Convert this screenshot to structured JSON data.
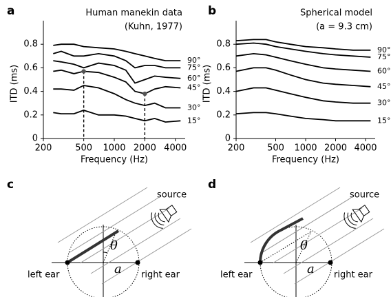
{
  "chart_data": [
    {
      "type": "line",
      "label": "a",
      "title": "Human manekin data",
      "subtitle": "(Kuhn, 1977)",
      "x_label": "Frequency (Hz)",
      "y_label": "ITD (ms)",
      "log_x": true,
      "x": [
        250,
        300,
        400,
        500,
        700,
        1000,
        1300,
        1600,
        2000,
        2500,
        3200,
        4500
      ],
      "xlim": [
        200,
        5000
      ],
      "xticks": [
        200,
        500,
        1000,
        2000,
        4000
      ],
      "ylim": [
        0,
        1
      ],
      "yticks": [
        0,
        0.2,
        0.4,
        0.6,
        0.8
      ],
      "series": [
        {
          "name": "90°",
          "color": "#000000",
          "values": [
            0.79,
            0.8,
            0.8,
            0.78,
            0.77,
            0.76,
            0.74,
            0.72,
            0.7,
            0.68,
            0.66,
            0.66
          ]
        },
        {
          "name": "75°",
          "color": "#000000",
          "values": [
            0.72,
            0.74,
            0.7,
            0.7,
            0.72,
            0.7,
            0.66,
            0.6,
            0.62,
            0.62,
            0.6,
            0.6
          ]
        },
        {
          "name": "60°",
          "color": "#000000",
          "values": [
            0.66,
            0.65,
            0.63,
            0.6,
            0.64,
            0.62,
            0.58,
            0.47,
            0.5,
            0.53,
            0.52,
            0.51
          ]
        },
        {
          "name": "45°",
          "color": "#000000",
          "values": [
            0.57,
            0.58,
            0.55,
            0.57,
            0.56,
            0.52,
            0.48,
            0.4,
            0.38,
            0.42,
            0.44,
            0.43
          ]
        },
        {
          "name": "30°",
          "color": "#000000",
          "values": [
            0.42,
            0.42,
            0.41,
            0.45,
            0.43,
            0.38,
            0.33,
            0.3,
            0.28,
            0.3,
            0.26,
            0.26
          ]
        },
        {
          "name": "15°",
          "color": "#000000",
          "values": [
            0.22,
            0.21,
            0.21,
            0.24,
            0.2,
            0.2,
            0.19,
            0.17,
            0.15,
            0.17,
            0.14,
            0.15
          ]
        }
      ],
      "markers": [
        {
          "x": 500,
          "y": 0.57
        },
        {
          "x": 2000,
          "y": 0.38
        }
      ]
    },
    {
      "type": "line",
      "label": "b",
      "title": "Spherical model",
      "subtitle": "(a = 9.3 cm)",
      "x_label": "Frequency (Hz)",
      "y_label": "ITD (ms)",
      "log_x": true,
      "x": [
        200,
        300,
        400,
        500,
        700,
        1000,
        1500,
        2000,
        3000,
        4500
      ],
      "xlim": [
        200,
        5000
      ],
      "xticks": [
        200,
        500,
        1000,
        2000,
        4000
      ],
      "ylim": [
        0,
        1
      ],
      "yticks": [
        0,
        0.2,
        0.4,
        0.6,
        0.8
      ],
      "series": [
        {
          "name": "90°",
          "color": "#000000",
          "values": [
            0.83,
            0.84,
            0.84,
            0.82,
            0.8,
            0.78,
            0.77,
            0.76,
            0.75,
            0.75
          ]
        },
        {
          "name": "75°",
          "color": "#000000",
          "values": [
            0.8,
            0.81,
            0.8,
            0.78,
            0.76,
            0.74,
            0.72,
            0.71,
            0.7,
            0.69
          ]
        },
        {
          "name": "60°",
          "color": "#000000",
          "values": [
            0.7,
            0.72,
            0.71,
            0.69,
            0.66,
            0.63,
            0.6,
            0.59,
            0.58,
            0.57
          ]
        },
        {
          "name": "45°",
          "color": "#000000",
          "values": [
            0.57,
            0.6,
            0.6,
            0.58,
            0.54,
            0.5,
            0.47,
            0.46,
            0.45,
            0.44
          ]
        },
        {
          "name": "30°",
          "color": "#000000",
          "values": [
            0.4,
            0.43,
            0.43,
            0.41,
            0.38,
            0.35,
            0.32,
            0.31,
            0.3,
            0.3
          ]
        },
        {
          "name": "15°",
          "color": "#000000",
          "values": [
            0.21,
            0.22,
            0.22,
            0.21,
            0.19,
            0.17,
            0.16,
            0.15,
            0.15,
            0.15
          ]
        }
      ]
    }
  ],
  "diagrams": [
    {
      "label": "c",
      "source": "source",
      "left": "left ear",
      "right": "right ear",
      "angle": "θ",
      "radius": "a"
    },
    {
      "label": "d",
      "source": "source",
      "left": "left ear",
      "right": "right ear",
      "angle": "θ",
      "radius": "a"
    }
  ]
}
